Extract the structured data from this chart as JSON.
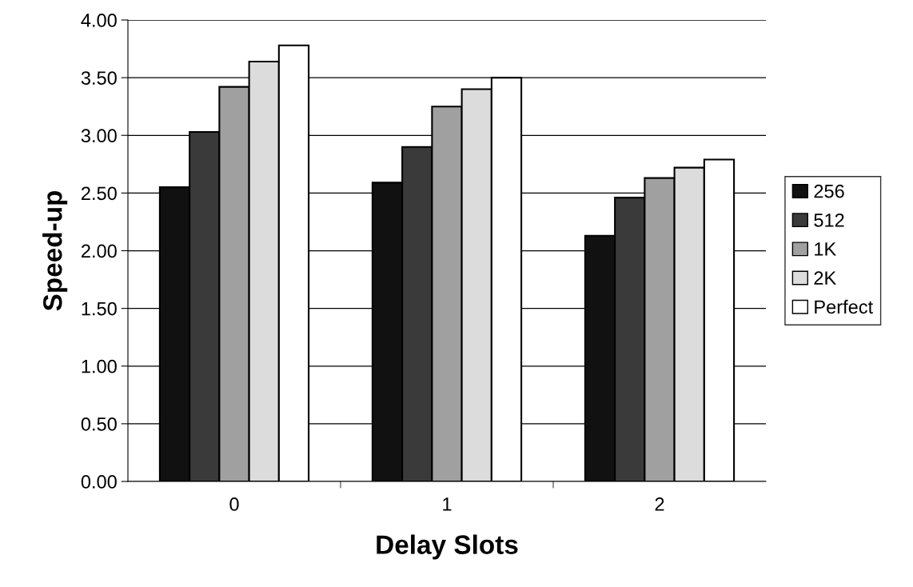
{
  "chart_data": {
    "type": "bar",
    "xlabel": "Delay Slots",
    "ylabel": "Speed-up",
    "categories": [
      "0",
      "1",
      "2"
    ],
    "series": [
      {
        "name": "256",
        "color": "#111111",
        "values": [
          2.55,
          2.59,
          2.13
        ]
      },
      {
        "name": "512",
        "color": "#3a3a3a",
        "values": [
          3.03,
          2.9,
          2.46
        ]
      },
      {
        "name": "1K",
        "color": "#a0a0a0",
        "values": [
          3.42,
          3.25,
          2.63
        ]
      },
      {
        "name": "2K",
        "color": "#dcdcdc",
        "values": [
          3.64,
          3.4,
          2.72
        ]
      },
      {
        "name": "Perfect",
        "color": "#ffffff",
        "values": [
          3.78,
          3.5,
          2.79
        ]
      }
    ],
    "ylim": [
      0,
      4
    ],
    "yticks": [
      {
        "value": 0,
        "label": "0.00"
      },
      {
        "value": 0.5,
        "label": "0.50"
      },
      {
        "value": 1,
        "label": "1.00"
      },
      {
        "value": 1.5,
        "label": "1.50"
      },
      {
        "value": 2,
        "label": "2.00"
      },
      {
        "value": 2.5,
        "label": "2.50"
      },
      {
        "value": 3,
        "label": "3.00"
      },
      {
        "value": 3.5,
        "label": "3.50"
      },
      {
        "value": 4,
        "label": "4.00"
      }
    ],
    "grid": "y",
    "legend": "right"
  }
}
